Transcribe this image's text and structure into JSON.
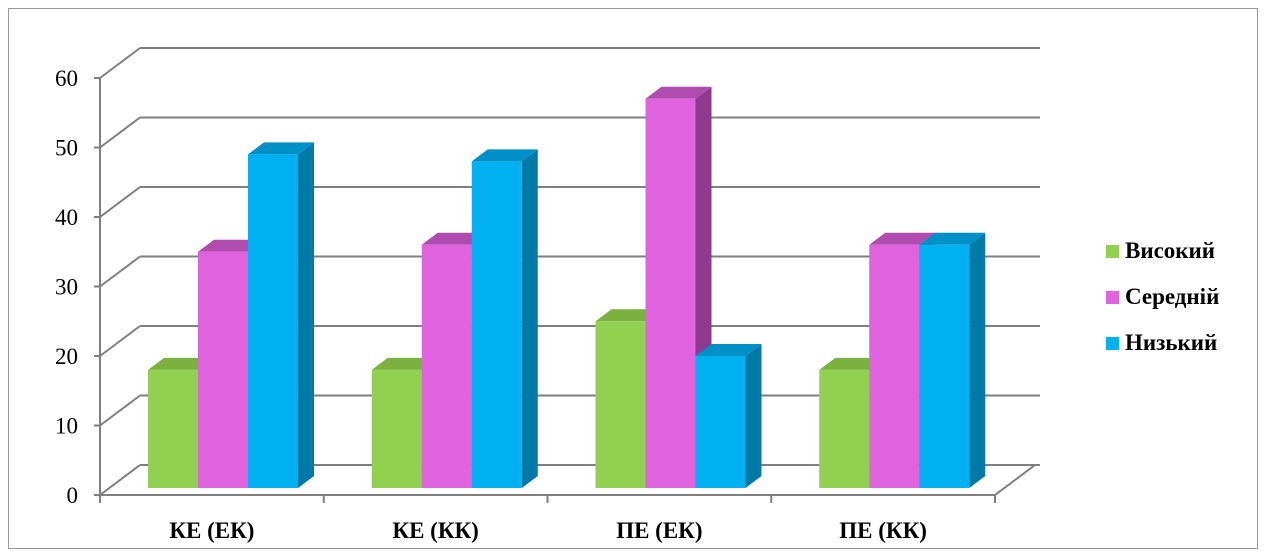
{
  "chart_data": {
    "type": "bar",
    "style": "3d-clustered-column",
    "categories": [
      "КЕ (ЕК)",
      "КЕ (КК)",
      "ПЕ (ЕК)",
      "ПЕ (КК)"
    ],
    "series": [
      {
        "name": "Високий",
        "values": [
          17,
          17,
          24,
          17
        ],
        "color": "#92d050",
        "side_color": "#6f9e3a",
        "top_color": "#7bb23f"
      },
      {
        "name": "Середній",
        "values": [
          34,
          35,
          56,
          35
        ],
        "color": "#df63df",
        "side_color": "#8e3a8e",
        "top_color": "#b04cb0"
      },
      {
        "name": "Низький",
        "values": [
          48,
          47,
          19,
          35
        ],
        "color": "#00b0f0",
        "side_color": "#0078a8",
        "top_color": "#0090c8"
      }
    ],
    "ylim": [
      0,
      60
    ],
    "yticks": [
      "0",
      "10",
      "20",
      "30",
      "40",
      "50",
      "60"
    ],
    "grid": true,
    "legend_position": "right"
  }
}
